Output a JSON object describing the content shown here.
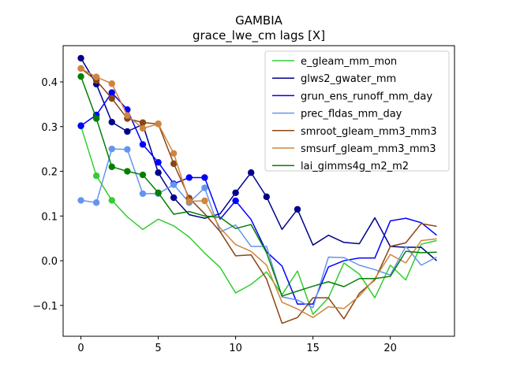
{
  "chart_data": {
    "type": "line",
    "title": "GAMBIA",
    "subtitle": "grace_lwe_cm lags [X]",
    "xlabel": "",
    "ylabel": "",
    "xlim": [
      -1.15,
      24.15
    ],
    "ylim": [
      -0.169,
      0.481
    ],
    "xticks": [
      0,
      5,
      10,
      15,
      20
    ],
    "yticks": [
      -0.1,
      0.0,
      0.1,
      0.2,
      0.3,
      0.4
    ],
    "ytick_labels": [
      "−0.1",
      "0.0",
      "0.1",
      "0.2",
      "0.3",
      "0.4"
    ],
    "grid": false,
    "legend_position": "upper right",
    "x": [
      0,
      1,
      2,
      3,
      4,
      5,
      6,
      7,
      8,
      9,
      10,
      11,
      12,
      13,
      14,
      15,
      16,
      17,
      18,
      19,
      20,
      21,
      22,
      23
    ],
    "series": [
      {
        "name": "e_gleam_mm_mon",
        "color": "#32cd32",
        "values": [
          0.301,
          0.19,
          0.135,
          0.098,
          0.07,
          0.093,
          0.078,
          0.053,
          0.017,
          -0.015,
          -0.072,
          -0.053,
          -0.025,
          -0.076,
          -0.023,
          -0.12,
          -0.083,
          -0.005,
          -0.03,
          -0.083,
          -0.01,
          -0.043,
          0.037,
          0.045
        ],
        "markers": [
          0,
          1,
          2
        ]
      },
      {
        "name": "glws2_gwater_mm",
        "color": "#00008b",
        "values": [
          0.453,
          0.395,
          0.31,
          0.289,
          0.305,
          0.197,
          0.141,
          0.103,
          0.095,
          0.105,
          0.152,
          0.197,
          0.143,
          0.07,
          0.115,
          0.035,
          0.057,
          0.041,
          0.038,
          0.096,
          0.032,
          0.03,
          0.03,
          0.0
        ],
        "markers": [
          0,
          1,
          2,
          3,
          5,
          6,
          10,
          11,
          12,
          14
        ]
      },
      {
        "name": "grun_ens_runoff_mm_day",
        "color": "#0000ff",
        "values": [
          0.302,
          0.326,
          0.376,
          0.338,
          0.26,
          0.22,
          0.172,
          0.186,
          0.186,
          0.093,
          0.134,
          0.092,
          0.02,
          -0.012,
          -0.097,
          -0.097,
          -0.014,
          0.0,
          0.006,
          0.006,
          0.089,
          0.095,
          0.085,
          0.057
        ],
        "markers": [
          0,
          1,
          2,
          3,
          4,
          5,
          6,
          7,
          8,
          10
        ]
      },
      {
        "name": "prec_fldas_mm_day",
        "color": "#6495ed",
        "values": [
          0.135,
          0.13,
          0.25,
          0.249,
          0.15,
          0.15,
          0.17,
          0.13,
          0.163,
          0.064,
          0.08,
          0.032,
          0.032,
          -0.081,
          -0.088,
          -0.105,
          0.008,
          0.007,
          -0.01,
          -0.02,
          -0.032,
          0.032,
          -0.01,
          0.008
        ],
        "markers": [
          0,
          1,
          2,
          3,
          4,
          5,
          6,
          7,
          8
        ]
      },
      {
        "name": "smroot_gleam_mm3_mm3",
        "color": "#8b4513",
        "values": [
          0.43,
          0.403,
          0.363,
          0.318,
          0.309,
          0.306,
          0.217,
          0.14,
          0.105,
          0.065,
          0.011,
          0.013,
          -0.041,
          -0.14,
          -0.127,
          -0.083,
          -0.083,
          -0.13,
          -0.073,
          -0.043,
          0.032,
          0.04,
          0.083,
          0.077
        ],
        "markers": [
          0,
          1,
          2,
          3,
          4,
          5,
          6,
          7
        ]
      },
      {
        "name": "smsurf_gleam_mm3_mm3",
        "color": "#cd853f",
        "values": [
          0.43,
          0.411,
          0.396,
          0.325,
          0.296,
          0.306,
          0.24,
          0.133,
          0.134,
          0.073,
          0.036,
          0.021,
          -0.01,
          -0.093,
          -0.108,
          -0.127,
          -0.103,
          -0.107,
          -0.079,
          -0.04,
          0.014,
          -0.005,
          0.045,
          0.049
        ],
        "markers": [
          0,
          1,
          2,
          3,
          4,
          5,
          6,
          7,
          8
        ]
      },
      {
        "name": "lai_gimms4g_m2_m2",
        "color": "#008000",
        "values": [
          0.412,
          0.318,
          0.21,
          0.2,
          0.192,
          0.152,
          0.104,
          0.11,
          0.1,
          0.097,
          0.072,
          0.081,
          0.018,
          -0.079,
          -0.068,
          -0.057,
          -0.047,
          -0.058,
          -0.04,
          -0.04,
          -0.035,
          0.021,
          0.018,
          0.019
        ],
        "markers": [
          0,
          1,
          2,
          3,
          4,
          5
        ]
      }
    ]
  }
}
